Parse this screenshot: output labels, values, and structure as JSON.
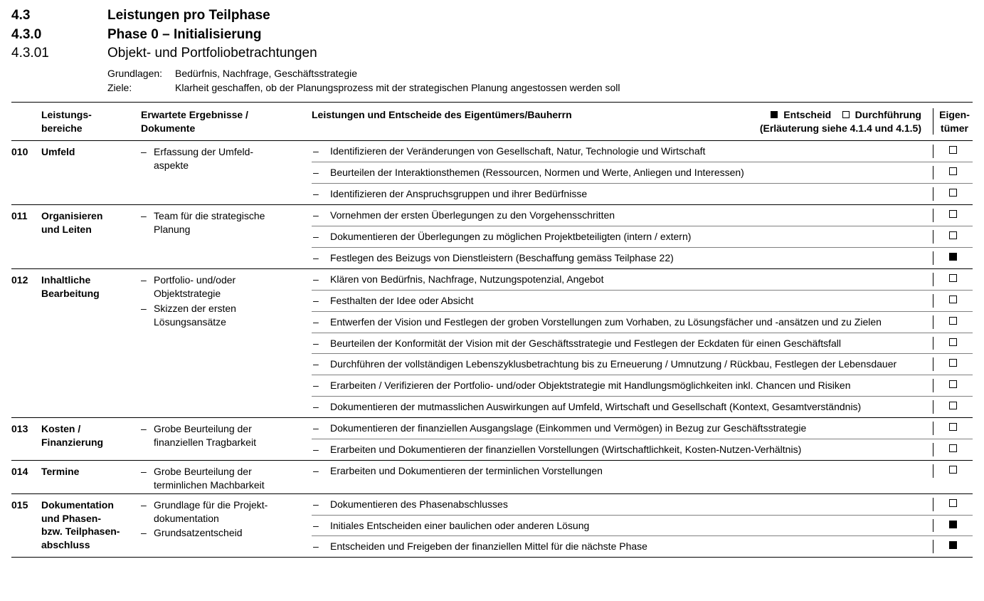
{
  "headings": [
    {
      "num": "4.3",
      "text": "Leistungen pro Teilphase",
      "cls": "h1"
    },
    {
      "num": "4.3.0",
      "text": "Phase 0 – Initialisierung",
      "cls": "h2"
    },
    {
      "num": "4.3.01",
      "text": "Objekt- und Portfoliobetrachtungen",
      "cls": "h3"
    }
  ],
  "meta": [
    {
      "label": "Grundlagen:",
      "value": "Bedürfnis, Nachfrage, Geschäftsstrategie"
    },
    {
      "label": "Ziele:",
      "value": "Klarheit geschaffen, ob der Planungsprozess mit der strategischen Planung angestossen werden soll"
    }
  ],
  "columns": {
    "area": "Leistungs-\nbereiche",
    "results": "Erwartete Ergebnisse /\nDokumente",
    "services": "Leistungen und Entscheide des Eigentümers/Bauherrn",
    "owner": "Eigen-\ntümer",
    "legend_entscheid": "Entscheid",
    "legend_durchfuehrung": "Durchführung",
    "legend_note": "(Erläuterung siehe 4.1.4 und 4.1.5)"
  },
  "groups": [
    {
      "code": "010",
      "area": "Umfeld",
      "results": [
        "Erfassung der Umfeld-\naspekte"
      ],
      "items": [
        {
          "text": "Identifizieren der Veränderungen von Gesellschaft, Natur, Technologie und Wirtschaft",
          "owner": "empty"
        },
        {
          "text": "Beurteilen der Interaktionsthemen (Ressourcen, Normen und Werte, Anliegen und Interessen)",
          "owner": "empty"
        },
        {
          "text": "Identifizieren der Anspruchsgruppen und ihrer Bedürfnisse",
          "owner": "empty"
        }
      ]
    },
    {
      "code": "011",
      "area": "Organisieren\nund Leiten",
      "results": [
        "Team für die strategische\nPlanung"
      ],
      "items": [
        {
          "text": "Vornehmen der ersten Überlegungen zu den Vorgehensschritten",
          "owner": "empty"
        },
        {
          "text": "Dokumentieren der Überlegungen zu möglichen Projektbeteiligten (intern / extern)",
          "owner": "empty"
        },
        {
          "text": "Festlegen des Beizugs von Dienstleistern (Beschaffung gemäss Teilphase 22)",
          "owner": "filled"
        }
      ]
    },
    {
      "code": "012",
      "area": "Inhaltliche\nBearbeitung",
      "results": [
        "Portfolio- und/oder\nObjektstrategie",
        "Skizzen der ersten\nLösungsansätze"
      ],
      "items": [
        {
          "text": "Klären von Bedürfnis, Nachfrage, Nutzungspotenzial, Angebot",
          "owner": "empty"
        },
        {
          "text": "Festhalten der Idee oder Absicht",
          "owner": "empty"
        },
        {
          "text": "Entwerfen der Vision und Festlegen der groben Vorstellungen zum Vorhaben, zu Lösungsfächer und -ansätzen und zu Zielen",
          "owner": "empty"
        },
        {
          "text": "Beurteilen der Konformität der Vision mit der Geschäftsstrategie und Festlegen der Eckdaten für einen Geschäftsfall",
          "owner": "empty"
        },
        {
          "text": "Durchführen der vollständigen Lebenszyklusbetrachtung bis zu Erneuerung / Umnutzung / Rückbau, Festlegen der Lebensdauer",
          "owner": "empty"
        },
        {
          "text": "Erarbeiten / Verifizieren der Portfolio- und/oder Objektstrategie mit Handlungsmöglichkeiten inkl. Chancen und Risiken",
          "owner": "empty"
        },
        {
          "text": "Dokumentieren der mutmasslichen Auswirkungen auf Umfeld, Wirtschaft und Gesellschaft (Kontext, Gesamtverständnis)",
          "owner": "empty"
        }
      ]
    },
    {
      "code": "013",
      "area": "Kosten /\nFinanzierung",
      "results": [
        "Grobe Beurteilung der\nfinanziellen Tragbarkeit"
      ],
      "items": [
        {
          "text": "Dokumentieren der finanziellen Ausgangslage (Einkommen und Vermögen) in Bezug zur Geschäftsstrategie",
          "owner": "empty"
        },
        {
          "text": "Erarbeiten und Dokumentieren der finanziellen Vorstellungen (Wirtschaftlichkeit, Kosten-Nutzen-Verhältnis)",
          "owner": "empty"
        }
      ]
    },
    {
      "code": "014",
      "area": "Termine",
      "results": [
        "Grobe Beurteilung der\nterminlichen Machbarkeit"
      ],
      "items": [
        {
          "text": "Erarbeiten und Dokumentieren der terminlichen Vorstellungen",
          "owner": "empty"
        }
      ]
    },
    {
      "code": "015",
      "area": "Dokumentation\nund Phasen-\nbzw. Teilphasen-\nabschluss",
      "results": [
        "Grundlage für die Projekt-\ndokumentation",
        "Grundsatzentscheid"
      ],
      "items": [
        {
          "text": "Dokumentieren des Phasenabschlusses",
          "owner": "empty"
        },
        {
          "text": "Initiales Entscheiden einer baulichen oder anderen Lösung",
          "owner": "filled"
        },
        {
          "text": "Entscheiden und Freigeben der finanziellen Mittel für die nächste Phase",
          "owner": "filled"
        }
      ]
    }
  ]
}
